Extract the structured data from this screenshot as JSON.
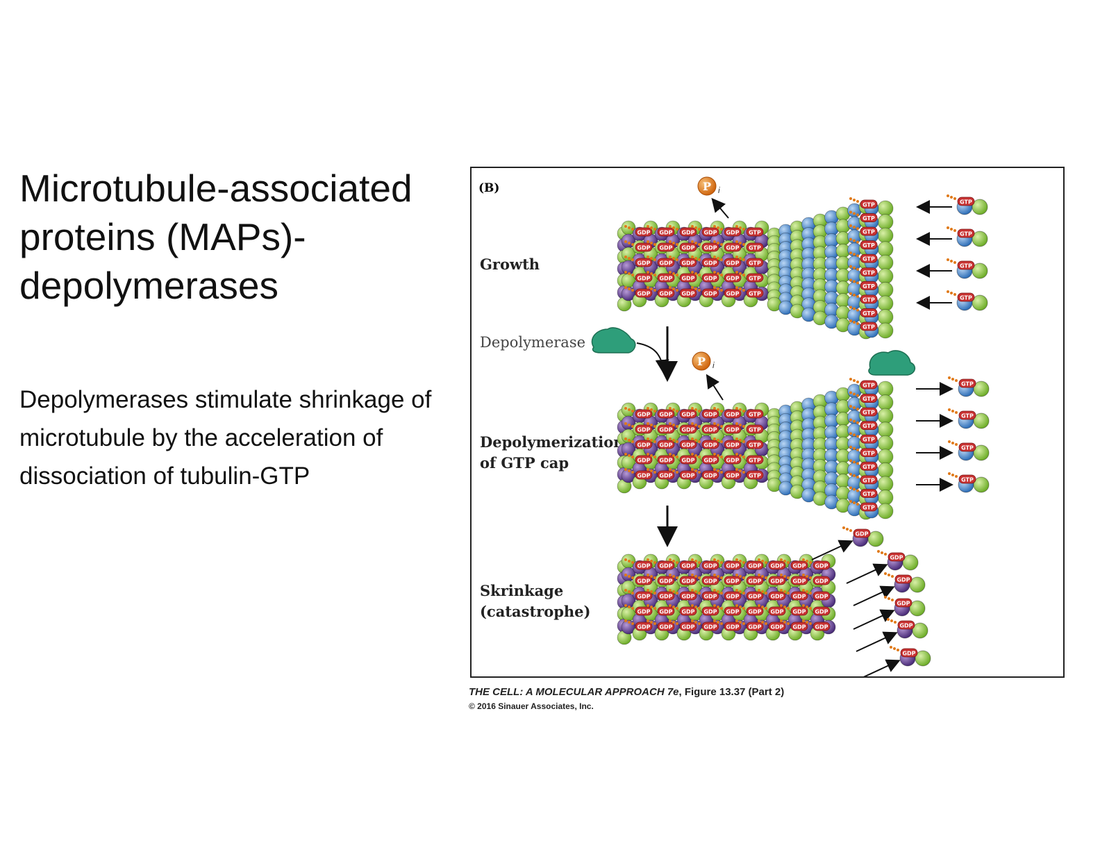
{
  "title": "Microtubule-associated proteins (MAPs)- depolymerases",
  "body": "Depolymerases stimulate shrinkage of microtubule by the acceleration of dissociation of tubulin-GTP",
  "figure": {
    "panel_label": "(B)",
    "stage_growth": "Growth",
    "stage_depolymerization_line1": "Depolymerization",
    "stage_depolymerization_line2": "of GTP cap",
    "stage_shrinkage_line1": "Skrinkage",
    "stage_shrinkage_line2": "(catastrophe)",
    "depolymerase_label": "Depolymerase",
    "pi_symbol": "P",
    "pi_subscript": "i",
    "gdp_label": "GDP",
    "gtp_label": "GTP"
  },
  "caption": {
    "book": "THE CELL: A MOLECULAR APPROACH 7e",
    "figure_ref": ", Figure 13.37 (Part 2)",
    "copyright": "© 2016 Sinauer Associates, Inc."
  },
  "colors": {
    "beta_tubulin_green": "#8cc63f",
    "alpha_tubulin_blue": "#4a90d9",
    "gdp_tubulin_purple": "#6b4a9a",
    "gtp_tag": "#c83232",
    "phosphate_orange": "#e07a1a",
    "depolymerase_teal": "#2e9e7a"
  }
}
